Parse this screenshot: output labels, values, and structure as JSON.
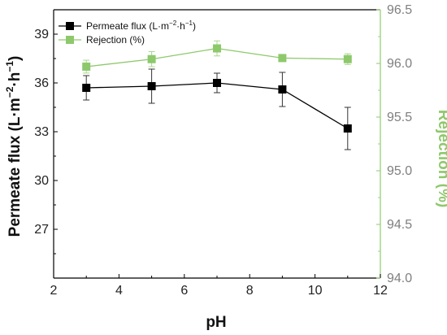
{
  "chart_data": {
    "type": "line",
    "x": [
      3,
      5,
      7,
      9,
      11
    ],
    "xlim": [
      2,
      12
    ],
    "xticks": [
      "2",
      "4",
      "6",
      "8",
      "10",
      "12"
    ],
    "xlabel": "pH",
    "ylabel_left": {
      "main": "Permeate flux (L·m",
      "sup1": "−2",
      "mid": "·h",
      "sup2": "−1",
      "end": ")"
    },
    "ylim_left": [
      24,
      40.5
    ],
    "yticks_left": [
      "27",
      "30",
      "33",
      "36",
      "39"
    ],
    "ylabel_right": "Rejection (%)",
    "ylim_right": [
      94.0,
      96.5
    ],
    "yticks_right": [
      "94.0",
      "94.5",
      "95.0",
      "95.5",
      "96.0",
      "96.5"
    ],
    "grid": false,
    "legend_position": "top-left",
    "series": [
      {
        "name": "Permeate flux (L·m−2·h−1)",
        "legend": {
          "main": "Permeate flux (L·m",
          "sup1": "−2",
          "mid": "·h",
          "sup2": "−1",
          "end": ")"
        },
        "axis": "left",
        "marker": "square",
        "color": "#000000",
        "values": [
          35.7,
          35.8,
          36.0,
          35.6,
          33.2
        ],
        "errors": [
          0.75,
          1.05,
          0.6,
          1.05,
          1.3
        ]
      },
      {
        "name": "Rejection (%)",
        "legend": {
          "main": "Rejection (%)"
        },
        "axis": "right",
        "marker": "square",
        "color": "#8dc96b",
        "values": [
          95.97,
          96.04,
          96.14,
          96.05,
          96.04
        ],
        "errors": [
          0.06,
          0.07,
          0.07,
          0.03,
          0.05
        ]
      }
    ]
  },
  "colors": {
    "left_axis": "#000000",
    "right_axis": "#8dc96b",
    "right_axis_line": "#9fd283",
    "flux_series": "#000000",
    "rejection_series": "#8dc96b",
    "rejection_errorbar": "#a8d78d"
  }
}
